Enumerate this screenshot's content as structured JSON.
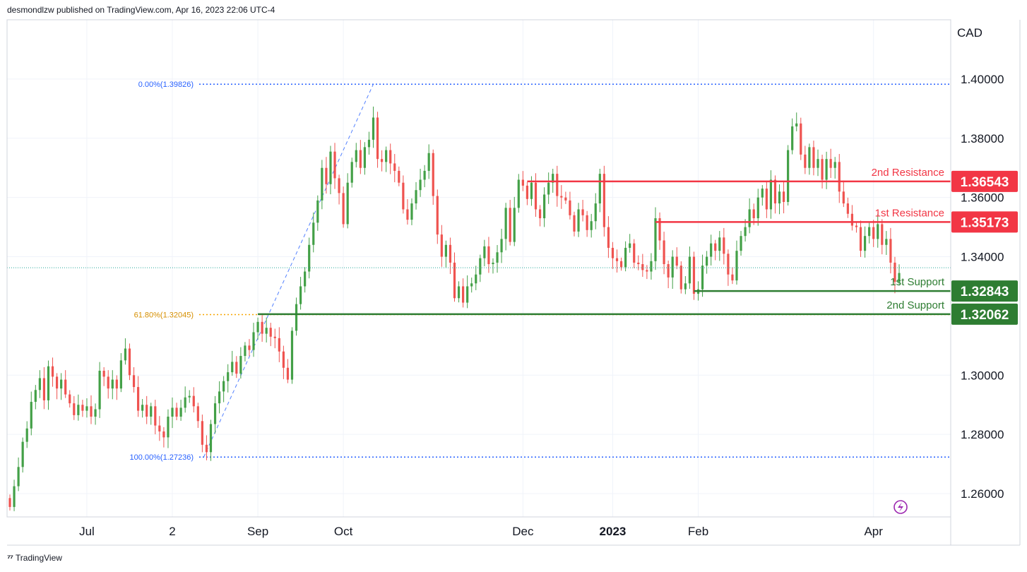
{
  "header": {
    "attribution": "desmondlzw published on TradingView.com, Apr 16, 2023 22:06 UTC-4"
  },
  "footer": {
    "brand": "TradingView"
  },
  "colors": {
    "up": "#26a69a",
    "up_body": "#43a047",
    "down": "#ef5350",
    "resistance": "#f23645",
    "support": "#2e7d32",
    "fib_blue": "#2962ff",
    "fib_orange": "#f7a600",
    "grid": "#f0f3fa"
  },
  "chart_data": {
    "type": "candlestick",
    "y_axis": {
      "unit": "CAD",
      "range": [
        1.2515,
        1.43
      ],
      "ticks": [
        "1.26000",
        "1.28000",
        "1.30000",
        "1.34000",
        "1.36000",
        "1.38000",
        "1.40000"
      ],
      "partial_top_tick": "1.42000"
    },
    "x_axis": {
      "ticks": [
        {
          "label": "Jul",
          "i": 18
        },
        {
          "label": "2",
          "i": 38
        },
        {
          "label": "Sep",
          "i": 58
        },
        {
          "label": "Oct",
          "i": 78
        },
        {
          "label": "Dec",
          "i": 120
        },
        {
          "label": "2023",
          "i": 141,
          "bold": true
        },
        {
          "label": "Feb",
          "i": 161
        },
        {
          "label": "Apr",
          "i": 202
        }
      ]
    },
    "fibonacci": [
      {
        "label": "0.00%(1.39826)",
        "value": 1.39826
      },
      {
        "label": "61.80%(1.32045)",
        "value": 1.32045
      },
      {
        "label": "100.00%(1.27236)",
        "value": 1.27236
      }
    ],
    "levels": [
      {
        "name": "2nd Resistance",
        "value": 1.36543,
        "badge": "1.36543",
        "kind": "resistance",
        "start_i": 121
      },
      {
        "name": "1st Resistance",
        "value": 1.35173,
        "badge": "1.35173",
        "kind": "resistance",
        "start_i": 151
      },
      {
        "name": "1st Support",
        "value": 1.32843,
        "badge": "1.32843",
        "kind": "support",
        "start_i": 160
      },
      {
        "name": "2nd Support",
        "value": 1.32062,
        "badge": "1.32062",
        "kind": "support",
        "start_i": 58
      }
    ],
    "current_price": 1.3363,
    "closes": [
      1.2555,
      1.2625,
      1.269,
      1.2775,
      1.282,
      1.291,
      1.295,
      1.299,
      1.2915,
      1.303,
      1.2995,
      1.2955,
      1.2985,
      1.2935,
      1.2905,
      1.2865,
      1.29,
      1.288,
      1.2895,
      1.286,
      1.2885,
      1.3015,
      1.2995,
      1.2955,
      1.2985,
      1.2955,
      1.305,
      1.309,
      1.3,
      1.296,
      1.288,
      1.29,
      1.286,
      1.2895,
      1.283,
      1.281,
      1.279,
      1.286,
      1.289,
      1.286,
      1.289,
      1.2925,
      1.293,
      1.2895,
      1.2845,
      1.2765,
      1.274,
      1.2835,
      1.2905,
      1.2945,
      1.298,
      1.301,
      1.3045,
      1.3005,
      1.3065,
      1.31,
      1.3085,
      1.3145,
      1.318,
      1.314,
      1.316,
      1.313,
      1.3125,
      1.308,
      1.3025,
      1.2985,
      1.315,
      1.324,
      1.33,
      1.335,
      1.344,
      1.3515,
      1.359,
      1.37,
      1.3645,
      1.3755,
      1.3665,
      1.3615,
      1.351,
      1.365,
      1.372,
      1.376,
      1.37,
      1.377,
      1.3795,
      1.387,
      1.373,
      1.372,
      1.376,
      1.3715,
      1.369,
      1.365,
      1.356,
      1.3525,
      1.358,
      1.3625,
      1.366,
      1.369,
      1.375,
      1.3605,
      1.3475,
      1.34,
      1.344,
      1.338,
      1.326,
      1.33,
      1.3245,
      1.33,
      1.331,
      1.334,
      1.3395,
      1.3435,
      1.3375,
      1.338,
      1.3415,
      1.346,
      1.3565,
      1.345,
      1.3565,
      1.366,
      1.364,
      1.3595,
      1.365,
      1.356,
      1.353,
      1.361,
      1.365,
      1.368,
      1.3605,
      1.36,
      1.359,
      1.354,
      1.3485,
      1.356,
      1.354,
      1.349,
      1.352,
      1.358,
      1.368,
      1.35,
      1.343,
      1.3395,
      1.3385,
      1.3365,
      1.343,
      1.3445,
      1.338,
      1.3375,
      1.3355,
      1.335,
      1.3385,
      1.353,
      1.3455,
      1.3375,
      1.333,
      1.34,
      1.337,
      1.329,
      1.331,
      1.34,
      1.3275,
      1.329,
      1.337,
      1.34,
      1.3445,
      1.342,
      1.3465,
      1.341,
      1.334,
      1.332,
      1.342,
      1.347,
      1.35,
      1.356,
      1.353,
      1.36,
      1.363,
      1.356,
      1.366,
      1.358,
      1.362,
      1.3585,
      1.376,
      1.384,
      1.385,
      1.3745,
      1.37,
      1.377,
      1.37,
      1.373,
      1.366,
      1.373,
      1.37,
      1.372,
      1.362,
      1.358,
      1.3545,
      1.3505,
      1.35,
      1.342,
      1.347,
      1.35,
      1.346,
      1.351,
      1.344,
      1.346,
      1.338,
      1.3315,
      1.3345
    ]
  }
}
